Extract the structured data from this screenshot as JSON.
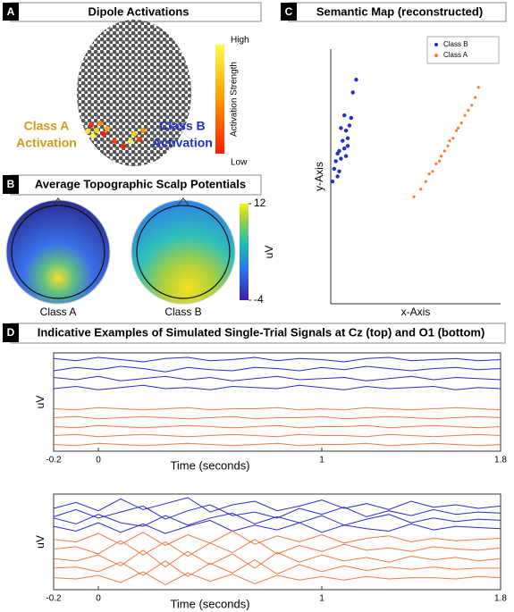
{
  "panel_a": {
    "letter": "A",
    "title": "Dipole Activations",
    "class_a_label": [
      "Class A",
      "Activation"
    ],
    "class_b_label": [
      "Class B",
      "Activation"
    ],
    "colorbar": {
      "label": "Activation Strength",
      "high": "High",
      "low": "Low"
    }
  },
  "panel_b": {
    "letter": "B",
    "title": "Average Topographic Scalp Potentials",
    "maps": [
      "Class A",
      "Class B"
    ],
    "colorbar": {
      "label": "uV",
      "clim": [
        -4,
        12
      ],
      "ticks": [
        12,
        -4
      ]
    }
  },
  "panel_d": {
    "letter": "D",
    "title": "Indicative Examples of Simulated Single-Trial Signals at Cz (top) and O1 (bottom)"
  },
  "chart_data": [
    {
      "type": "scatter",
      "letter": "C",
      "title": "Semantic Map (reconstructed)",
      "xlabel": "x-Axis",
      "ylabel": "y-Axis",
      "xlim": [
        0,
        10
      ],
      "ylim": [
        0,
        10
      ],
      "legend": "upper right",
      "series": [
        {
          "name": "Class B",
          "color": "#1f2fd4",
          "x": [
            0.1,
            0.2,
            0.3,
            0.4,
            0.5,
            0.6,
            0.7,
            0.8,
            0.9,
            1.0,
            1.1,
            1.2,
            1.3,
            1.5,
            0.4,
            0.6,
            0.8,
            1.0,
            0.5,
            0.9
          ],
          "y": [
            4.8,
            5.3,
            5.6,
            5.0,
            6.0,
            5.7,
            6.4,
            6.1,
            6.8,
            6.5,
            7.0,
            7.3,
            8.3,
            8.8,
            5.9,
            6.9,
            7.4,
            6.2,
            5.2,
            5.8
          ]
        },
        {
          "name": "Class A",
          "color": "#ff7a30",
          "x": [
            4.9,
            5.3,
            5.6,
            5.8,
            6.0,
            6.2,
            6.4,
            6.5,
            6.7,
            6.9,
            7.0,
            7.2,
            7.4,
            7.5,
            7.7,
            7.9,
            8.1,
            8.3,
            8.5,
            8.7
          ],
          "y": [
            4.2,
            4.5,
            4.8,
            5.1,
            5.2,
            5.5,
            5.6,
            5.8,
            6.0,
            6.2,
            6.4,
            6.5,
            6.8,
            6.9,
            7.1,
            7.4,
            7.6,
            7.8,
            8.1,
            8.5
          ]
        }
      ]
    },
    {
      "type": "line",
      "xlabel": "Time (seconds)",
      "ylabel": "uV",
      "xlim": [
        -0.2,
        1.8
      ],
      "ylim": [
        0.8,
        9.6
      ],
      "xticks": [
        -0.2,
        0,
        1,
        1.8
      ],
      "x": [
        -0.2,
        -0.1,
        0,
        0.1,
        0.2,
        0.3,
        0.4,
        0.5,
        0.6,
        0.7,
        0.8,
        0.9,
        1,
        1.1,
        1.2,
        1.3,
        1.4,
        1.5,
        1.6,
        1.7,
        1.8
      ],
      "series": [
        {
          "color": "#2a2ad0",
          "values": [
            9.1,
            8.9,
            9.2,
            9.0,
            8.8,
            9.1,
            9.2,
            8.9,
            9.0,
            9.2,
            8.9,
            9.1,
            9.0,
            8.8,
            9.1,
            9.2,
            8.9,
            9.0,
            9.1,
            8.9,
            9.0
          ]
        },
        {
          "color": "#2a2ad0",
          "values": [
            8.0,
            8.3,
            8.1,
            8.4,
            8.2,
            7.9,
            8.3,
            8.1,
            8.0,
            8.3,
            8.2,
            8.0,
            8.3,
            8.1,
            8.4,
            8.2,
            8.0,
            8.2,
            8.3,
            8.1,
            8.2
          ]
        },
        {
          "color": "#2a2ad0",
          "values": [
            7.4,
            7.2,
            7.5,
            7.1,
            7.3,
            7.5,
            7.2,
            7.4,
            7.1,
            7.3,
            7.5,
            7.2,
            7.3,
            7.4,
            7.1,
            7.3,
            7.5,
            7.2,
            7.4,
            7.3,
            7.2
          ]
        },
        {
          "color": "#2a2ad0",
          "values": [
            6.4,
            6.6,
            6.3,
            6.5,
            6.7,
            6.4,
            6.5,
            6.3,
            6.6,
            6.5,
            6.4,
            6.7,
            6.5,
            6.3,
            6.6,
            6.4,
            6.5,
            6.6,
            6.3,
            6.5,
            6.4
          ]
        },
        {
          "color": "#f07a45",
          "values": [
            4.6,
            4.5,
            4.7,
            4.6,
            4.5,
            4.6,
            4.7,
            4.5,
            4.6,
            4.6,
            4.7,
            4.5,
            4.6,
            4.5,
            4.7,
            4.6,
            4.5,
            4.6,
            4.7,
            4.6,
            4.5
          ]
        },
        {
          "color": "#f07a45",
          "values": [
            3.8,
            3.9,
            3.7,
            3.8,
            3.9,
            3.8,
            3.7,
            3.8,
            3.9,
            3.7,
            3.8,
            3.8,
            3.9,
            3.7,
            3.8,
            3.9,
            3.8,
            3.7,
            3.8,
            3.9,
            3.8
          ]
        },
        {
          "color": "#f07a45",
          "values": [
            3.0,
            2.9,
            3.1,
            3.0,
            2.9,
            3.0,
            3.1,
            3.0,
            2.9,
            3.0,
            3.1,
            2.9,
            3.0,
            3.0,
            3.1,
            2.9,
            3.0,
            3.1,
            3.0,
            2.9,
            3.0
          ]
        },
        {
          "color": "#f07a45",
          "values": [
            2.2,
            2.3,
            2.1,
            2.2,
            2.3,
            2.2,
            2.1,
            2.2,
            2.3,
            2.2,
            2.1,
            2.3,
            2.2,
            2.2,
            2.1,
            2.3,
            2.2,
            2.1,
            2.2,
            2.3,
            2.2
          ]
        },
        {
          "color": "#f07a45",
          "values": [
            1.4,
            1.3,
            1.5,
            1.4,
            1.3,
            1.4,
            1.5,
            1.4,
            1.3,
            1.4,
            1.5,
            1.3,
            1.4,
            1.4,
            1.5,
            1.3,
            1.4,
            1.5,
            1.4,
            1.3,
            1.4
          ]
        }
      ]
    },
    {
      "type": "line",
      "xlabel": "Time (seconds)",
      "ylabel": "uV",
      "xlim": [
        -0.2,
        1.8
      ],
      "ylim": [
        1.6,
        9.6
      ],
      "xticks": [
        -0.2,
        0,
        1,
        1.8
      ],
      "x": [
        -0.2,
        -0.1,
        0,
        0.1,
        0.2,
        0.3,
        0.4,
        0.5,
        0.6,
        0.7,
        0.8,
        0.9,
        1,
        1.1,
        1.2,
        1.3,
        1.4,
        1.5,
        1.6,
        1.7,
        1.8
      ],
      "series": [
        {
          "color": "#2a2ad0",
          "values": [
            8.4,
            8.9,
            8.2,
            9.2,
            8.3,
            8.8,
            9.3,
            8.1,
            8.7,
            9.0,
            8.2,
            8.6,
            9.1,
            8.4,
            8.8,
            8.3,
            9.0,
            8.5,
            8.7,
            8.4,
            8.6
          ]
        },
        {
          "color": "#2a2ad0",
          "values": [
            7.7,
            8.3,
            7.6,
            8.1,
            8.6,
            7.5,
            8.2,
            8.7,
            7.8,
            8.1,
            7.6,
            8.4,
            7.9,
            8.5,
            7.7,
            8.2,
            7.8,
            8.3,
            7.9,
            8.1,
            8.0
          ]
        },
        {
          "color": "#2a2ad0",
          "values": [
            7.6,
            7.1,
            7.9,
            7.2,
            6.9,
            7.8,
            7.0,
            7.6,
            8.0,
            7.1,
            7.7,
            7.2,
            7.8,
            7.0,
            7.5,
            7.9,
            7.2,
            7.6,
            7.3,
            7.5,
            7.4
          ]
        },
        {
          "color": "#2a2ad0",
          "values": [
            6.9,
            6.5,
            7.2,
            6.4,
            7.1,
            6.3,
            6.9,
            7.4,
            6.5,
            7.0,
            6.6,
            7.2,
            6.4,
            7.0,
            6.7,
            6.5,
            7.1,
            6.6,
            6.9,
            6.8,
            6.7
          ]
        },
        {
          "color": "#f07a45",
          "values": [
            5.8,
            5.6,
            6.3,
            5.4,
            6.4,
            5.3,
            6.2,
            5.5,
            6.5,
            5.4,
            6.1,
            5.6,
            6.2,
            5.5,
            5.9,
            6.1,
            5.6,
            5.9,
            5.7,
            5.8,
            5.9
          ]
        },
        {
          "color": "#f07a45",
          "values": [
            5.0,
            5.2,
            4.6,
            5.7,
            4.5,
            5.6,
            4.4,
            5.5,
            4.7,
            5.8,
            4.6,
            5.3,
            4.8,
            5.4,
            4.9,
            5.1,
            4.8,
            5.2,
            5.0,
            4.9,
            5.1
          ]
        },
        {
          "color": "#f07a45",
          "values": [
            4.2,
            4.0,
            4.5,
            3.6,
            4.9,
            3.5,
            4.8,
            3.7,
            4.6,
            3.4,
            4.7,
            3.9,
            4.5,
            4.0,
            4.3,
            3.9,
            4.4,
            4.1,
            4.3,
            4.0,
            4.2
          ]
        },
        {
          "color": "#f07a45",
          "values": [
            3.4,
            3.5,
            3.1,
            3.9,
            2.8,
            4.0,
            2.7,
            3.8,
            3.0,
            4.1,
            2.9,
            3.7,
            3.1,
            3.6,
            3.2,
            3.5,
            3.3,
            3.5,
            3.3,
            3.4,
            3.4
          ]
        },
        {
          "color": "#f07a45",
          "values": [
            2.6,
            2.5,
            2.8,
            2.2,
            3.1,
            2.0,
            3.0,
            2.3,
            2.9,
            2.1,
            2.8,
            2.4,
            2.7,
            2.4,
            2.7,
            2.5,
            2.6,
            2.6,
            2.5,
            2.7,
            2.6
          ]
        }
      ]
    }
  ]
}
